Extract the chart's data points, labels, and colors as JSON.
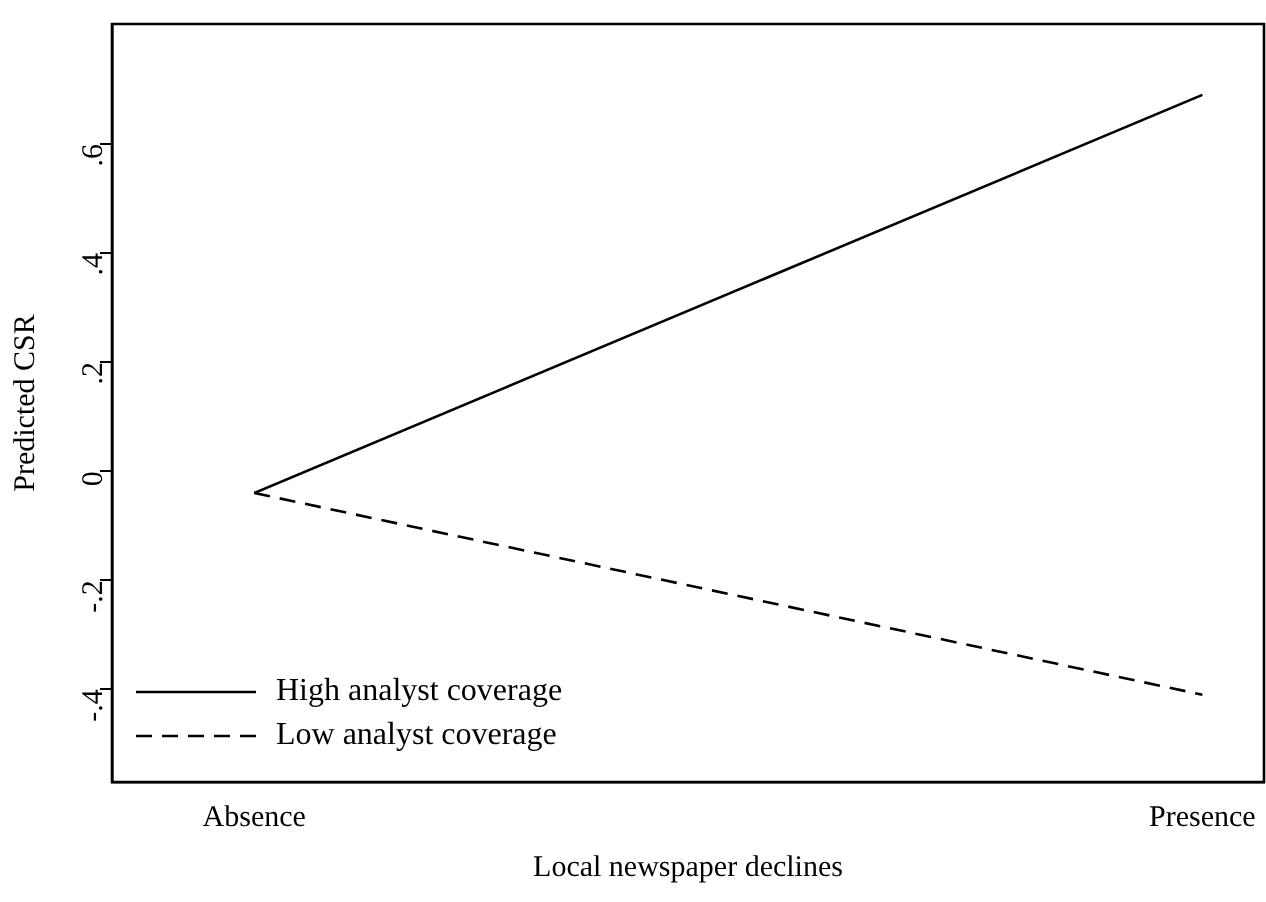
{
  "chart_data": {
    "type": "line",
    "xlabel": "Local newspaper declines",
    "ylabel": "Predicted CSR",
    "categories": [
      "Absence",
      "Presence"
    ],
    "series": [
      {
        "name": "High analyst coverage",
        "color": "#000000",
        "line_style": "solid",
        "values": [
          -0.04,
          0.69
        ]
      },
      {
        "name": "Low analyst coverage",
        "color": "#000000",
        "line_style": "dashed",
        "values": [
          -0.04,
          -0.41
        ]
      }
    ],
    "ylim": [
      -0.57,
      0.82
    ],
    "yticks": [
      {
        "value": -0.4,
        "label": "-.4"
      },
      {
        "value": -0.2,
        "label": "-.2"
      },
      0,
      {
        "value": 0.2,
        "label": ".2"
      },
      {
        "value": 0.4,
        "label": ".4"
      },
      {
        "value": 0.6,
        "label": ".6"
      }
    ],
    "grid": false,
    "legend": "bottom left",
    "marker": "none"
  }
}
